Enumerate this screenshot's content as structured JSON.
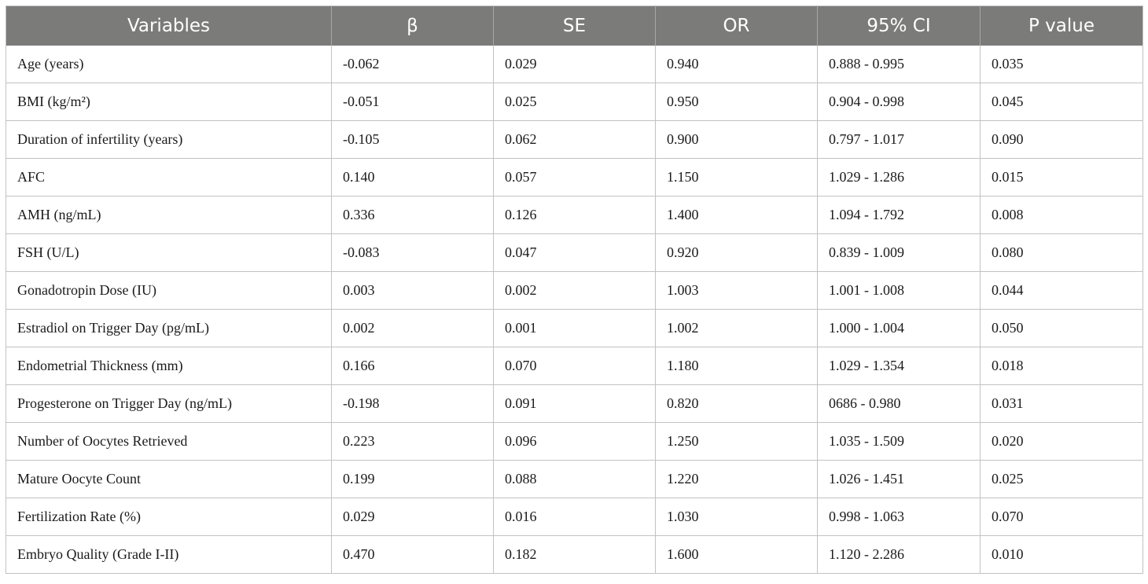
{
  "table": {
    "headers": [
      "Variables",
      "β",
      "SE",
      "OR",
      "95% CI",
      "P value"
    ],
    "rows": [
      [
        "Age (years)",
        "-0.062",
        "0.029",
        "0.940",
        "0.888 - 0.995",
        "0.035"
      ],
      [
        "BMI (kg/m²)",
        "-0.051",
        "0.025",
        "0.950",
        "0.904 - 0.998",
        "0.045"
      ],
      [
        "Duration of infertility (years)",
        "-0.105",
        "0.062",
        "0.900",
        "0.797 - 1.017",
        "0.090"
      ],
      [
        "AFC",
        "0.140",
        "0.057",
        "1.150",
        "1.029 - 1.286",
        "0.015"
      ],
      [
        "AMH (ng/mL)",
        "0.336",
        "0.126",
        "1.400",
        "1.094 - 1.792",
        "0.008"
      ],
      [
        "FSH (U/L)",
        "-0.083",
        "0.047",
        "0.920",
        "0.839 - 1.009",
        "0.080"
      ],
      [
        "Gonadotropin Dose (IU)",
        "0.003",
        "0.002",
        "1.003",
        "1.001 - 1.008",
        "0.044"
      ],
      [
        "Estradiol on Trigger Day (pg/mL)",
        "0.002",
        "0.001",
        "1.002",
        "1.000 - 1.004",
        "0.050"
      ],
      [
        "Endometrial Thickness (mm)",
        "0.166",
        "0.070",
        "1.180",
        "1.029 - 1.354",
        "0.018"
      ],
      [
        "Progesterone on Trigger Day (ng/mL)",
        "-0.198",
        "0.091",
        "0.820",
        "0686 - 0.980",
        "0.031"
      ],
      [
        "Number of Oocytes Retrieved",
        "0.223",
        "0.096",
        "1.250",
        "1.035 - 1.509",
        "0.020"
      ],
      [
        "Mature Oocyte Count",
        "0.199",
        "0.088",
        "1.220",
        "1.026 - 1.451",
        "0.025"
      ],
      [
        "Fertilization Rate (%)",
        "0.029",
        "0.016",
        "1.030",
        "0.998 - 1.063",
        "0.070"
      ],
      [
        "Embryo Quality (Grade I-II)",
        "0.470",
        "0.182",
        "1.600",
        "1.120 - 2.286",
        "0.010"
      ]
    ]
  }
}
